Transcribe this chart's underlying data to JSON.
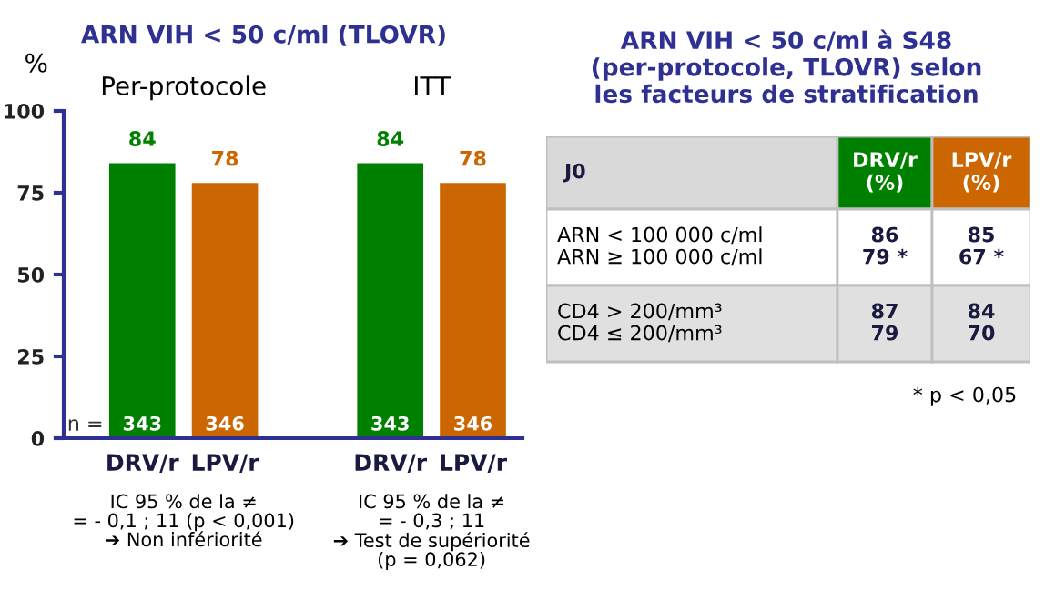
{
  "chart_data": [
    {
      "type": "bar",
      "title": "ARN VIH < 50 c/ml (TLOVR)",
      "ylabel": "%",
      "categories": [
        "DRV/r",
        "LPV/r",
        null,
        "DRV/r",
        "LPV/r"
      ],
      "values": [
        84,
        78,
        null,
        84,
        78
      ],
      "colors": [
        "#008000",
        "#cc6600",
        "#ffffff",
        "#008000",
        "#cc6600"
      ],
      "value_labels": [
        "84",
        "78",
        null,
        "84",
        "78"
      ],
      "ylim": [
        0,
        100
      ],
      "yticks": [
        0,
        25,
        50,
        75,
        100
      ],
      "annotations": [
        "Per-protocole",
        "ITT",
        "n =",
        "343",
        "346",
        "343",
        "346",
        "IC 95 % de la ≠\n= - 0,1 ; 11 (p < 0,001)\n➔ Non infériorité",
        "IC 95 % de la ≠\n= - 0,3 ; 11\n➔ Test de supériorité\n(p = 0,062)"
      ]
    },
    {
      "type": "other",
      "title": "ARN VIH < 50 c/ml à S48\n(per-protocole, TLOVR) selon\nles facteurs de stratification",
      "categories": [
        "J0",
        "DRV/r\n(%)",
        "LPV/r\n(%)"
      ],
      "colors": [
        "#d9d9d9",
        "#008000",
        "#cc6600"
      ],
      "y_categories": [
        "ARN < 100 000 c/ml\nARN ≥ 100 000 c/ml",
        "CD4 > 200/mm³\nCD4 ≤ 200/mm³"
      ],
      "cell_labels": [
        [
          "86\n79 *",
          "85\n67 *"
        ],
        [
          "87\n79",
          "84\n70"
        ]
      ],
      "annotations": [
        "* p < 0,05"
      ]
    }
  ]
}
